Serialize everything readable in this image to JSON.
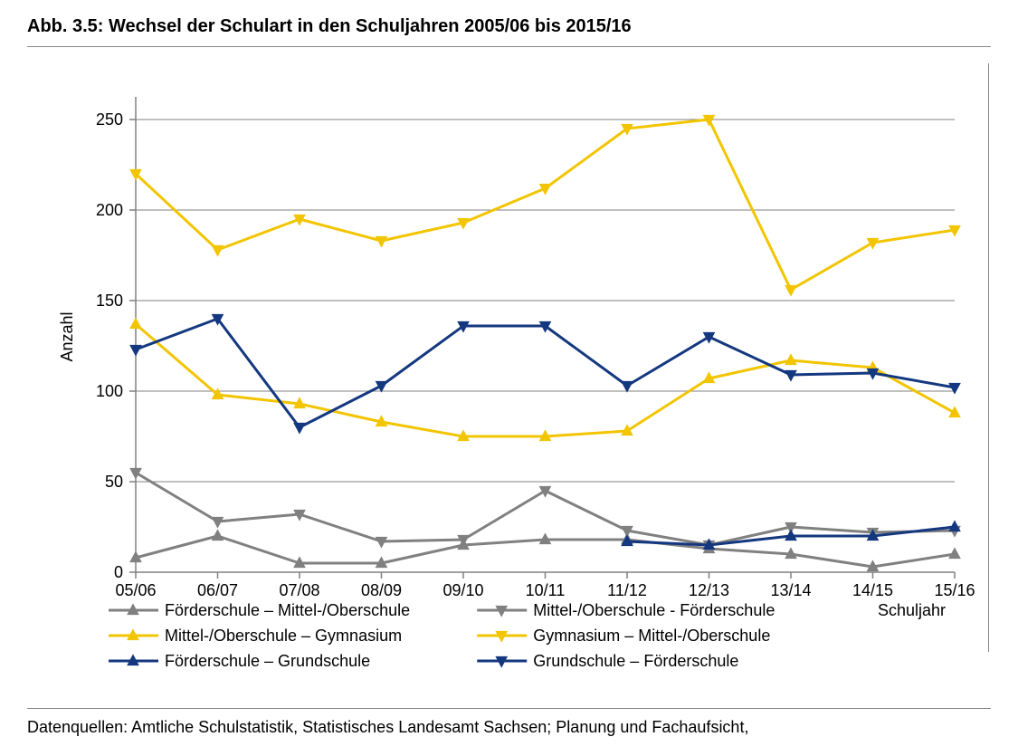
{
  "title": "Abb. 3.5: Wechsel der Schulart in den Schuljahren 2005/06 bis 2015/16",
  "footer": "Datenquellen: Amtliche Schulstatistik, Statistisches Landesamt Sachsen; Planung und Fachaufsicht,",
  "chart": {
    "type": "line",
    "background_color": "#ffffff",
    "grid_color": "#808080",
    "axis_color": "#808080",
    "ylabel": "Anzahl",
    "xlabel": "Schuljahr",
    "label_fontsize": 18,
    "tick_fontsize": 18,
    "ylim": [
      0,
      260
    ],
    "ytick_step": 50,
    "yticks": [
      0,
      50,
      100,
      150,
      200,
      250
    ],
    "x_categories": [
      "05/06",
      "06/07",
      "07/08",
      "08/09",
      "09/10",
      "10/11",
      "11/12",
      "12/13",
      "13/14",
      "14/15",
      "15/16"
    ],
    "line_width": 3,
    "marker_size": 6,
    "series": [
      {
        "id": "fs_mos",
        "label": "Förderschule – Mittel-/Oberschule",
        "color": "#808080",
        "marker": "triangle-up",
        "values": [
          8,
          20,
          5,
          5,
          15,
          18,
          18,
          13,
          10,
          3,
          10
        ]
      },
      {
        "id": "mos_fs",
        "label": "Mittel-/Oberschule - Förderschule",
        "color": "#808080",
        "marker": "triangle-down",
        "values": [
          55,
          28,
          32,
          17,
          18,
          45,
          23,
          15,
          25,
          22,
          23
        ]
      },
      {
        "id": "mos_gym",
        "label": "Mittel-/Oberschule – Gymnasium",
        "color": "#f2c500",
        "marker": "triangle-up",
        "values": [
          137,
          98,
          93,
          83,
          75,
          75,
          78,
          107,
          117,
          113,
          88
        ]
      },
      {
        "id": "gym_mos",
        "label": "Gymnasium – Mittel-/Oberschule",
        "color": "#f2c500",
        "marker": "triangle-down",
        "values": [
          220,
          178,
          195,
          183,
          193,
          212,
          245,
          250,
          156,
          182,
          189
        ]
      },
      {
        "id": "fs_gs",
        "label": "Förderschule – Grundschule",
        "color": "#14387f",
        "marker": "triangle-up",
        "values": [
          null,
          null,
          null,
          null,
          null,
          null,
          17,
          15,
          20,
          20,
          25
        ]
      },
      {
        "id": "gs_fs",
        "label": "Grundschule – Förderschule",
        "color": "#14387f",
        "marker": "triangle-down",
        "values": [
          123,
          140,
          80,
          103,
          136,
          136,
          103,
          130,
          109,
          110,
          102
        ]
      }
    ],
    "legend": {
      "position": "bottom",
      "columns": 2,
      "items": [
        {
          "series": "fs_mos"
        },
        {
          "series": "mos_fs"
        },
        {
          "series": "mos_gym"
        },
        {
          "series": "gym_mos"
        },
        {
          "series": "fs_gs"
        },
        {
          "series": "gs_fs"
        }
      ]
    }
  }
}
